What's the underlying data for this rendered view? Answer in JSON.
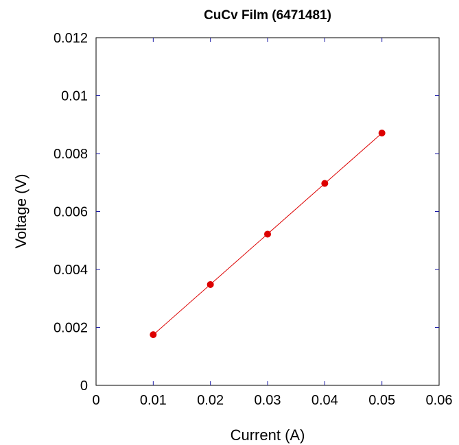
{
  "chart_data": {
    "type": "scatter",
    "title": "CuCv Film (6471481)",
    "xlabel": "Current (A)",
    "ylabel": "Voltage (V)",
    "xlim": [
      0,
      0.06
    ],
    "ylim": [
      0,
      0.012
    ],
    "x_ticks": [
      "0",
      "0.01",
      "0.02",
      "0.03",
      "0.04",
      "0.05",
      "0.06"
    ],
    "y_ticks": [
      "0",
      "0.002",
      "0.004",
      "0.006",
      "0.008",
      "0.01",
      "0.012"
    ],
    "grid": false,
    "series": [
      {
        "x": [
          0.01,
          0.02,
          0.03,
          0.04,
          0.05
        ],
        "y": [
          0.00175,
          0.00348,
          0.00522,
          0.00697,
          0.00871
        ],
        "color": "#dd0000",
        "marker": "circle",
        "fit_line": true
      }
    ]
  }
}
